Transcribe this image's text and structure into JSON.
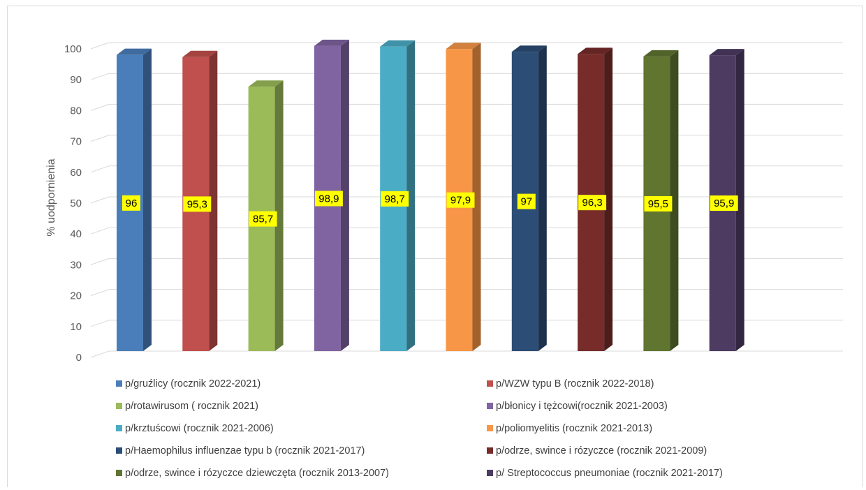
{
  "chart_data": {
    "type": "bar",
    "title": "",
    "xlabel": "",
    "ylabel": "% uodpornienia",
    "ylim": [
      0,
      100
    ],
    "yticks": [
      0,
      10,
      20,
      30,
      40,
      50,
      60,
      70,
      80,
      90,
      100
    ],
    "grid": true,
    "legend_position": "bottom",
    "series": [
      {
        "name": "p/gruźlicy (rocznik 2022-2021)",
        "value": 96,
        "label": "96",
        "color": "#4a7ebb"
      },
      {
        "name": "p/WZW typu B (rocznik 2022-2018)",
        "value": 95.3,
        "label": "95,3",
        "color": "#c0504d"
      },
      {
        "name": "p/rotawirusom ( rocznik 2021)",
        "value": 85.7,
        "label": "85,7",
        "color": "#9bbb59"
      },
      {
        "name": "p/błonicy i tężcowi(rocznik 2021-2003)",
        "value": 98.9,
        "label": "98,9",
        "color": "#8064a2"
      },
      {
        "name": "p/krztuścowi (rocznik 2021-2006)",
        "value": 98.7,
        "label": "98,7",
        "color": "#4bacc6"
      },
      {
        "name": "p/poliomyelitis (rocznik 2021-2013)",
        "value": 97.9,
        "label": "97,9",
        "color": "#f79646"
      },
      {
        "name": "p/Haemophilus influenzae typu b (rocznik 2021-2017)",
        "value": 97,
        "label": "97",
        "color": "#2c4d75"
      },
      {
        "name": "p/odrze, swince i rózyczce (rocznik 2021-2009)",
        "value": 96.3,
        "label": "96,3",
        "color": "#772c2a"
      },
      {
        "name": "p/odrze, swince i rózyczce dziewczęta (rocznik 2013-2007)",
        "value": 95.5,
        "label": "95,5",
        "color": "#5f7530"
      },
      {
        "name": "p/ Streptococcus pneumoniae (rocznik 2021-2017)",
        "value": 95.9,
        "label": "95,9",
        "color": "#4d3b62"
      }
    ],
    "data_label_style": {
      "background": "#ffff00",
      "color": "#000000"
    }
  }
}
